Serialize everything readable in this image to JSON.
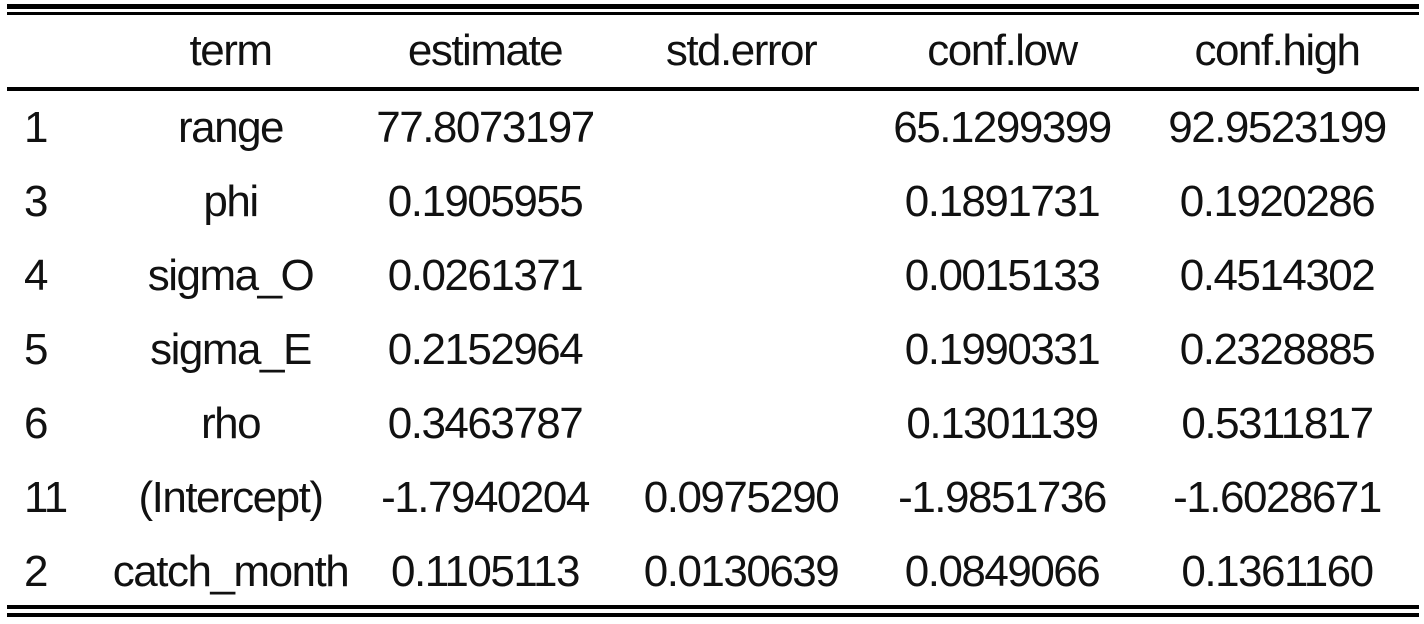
{
  "table": {
    "columns": [
      "",
      "term",
      "estimate",
      "std.error",
      "conf.low",
      "conf.high"
    ],
    "rows": [
      {
        "rowname": "1",
        "term": "range",
        "estimate": "77.8073197",
        "std_error": "",
        "conf_low": "65.1299399",
        "conf_high": "92.9523199"
      },
      {
        "rowname": "3",
        "term": "phi",
        "estimate": "0.1905955",
        "std_error": "",
        "conf_low": "0.1891731",
        "conf_high": "0.1920286"
      },
      {
        "rowname": "4",
        "term": "sigma_O",
        "estimate": "0.0261371",
        "std_error": "",
        "conf_low": "0.0015133",
        "conf_high": "0.4514302"
      },
      {
        "rowname": "5",
        "term": "sigma_E",
        "estimate": "0.2152964",
        "std_error": "",
        "conf_low": "0.1990331",
        "conf_high": "0.2328885"
      },
      {
        "rowname": "6",
        "term": "rho",
        "estimate": "0.3463787",
        "std_error": "",
        "conf_low": "0.1301139",
        "conf_high": "0.5311817"
      },
      {
        "rowname": "11",
        "term": "(Intercept)",
        "estimate": "-1.7940204",
        "std_error": "0.0975290",
        "conf_low": "-1.9851736",
        "conf_high": "-1.6028671"
      },
      {
        "rowname": "2",
        "term": "catch_month",
        "estimate": "0.1105113",
        "std_error": "0.0130639",
        "conf_low": "0.0849066",
        "conf_high": "0.1361160"
      }
    ]
  }
}
